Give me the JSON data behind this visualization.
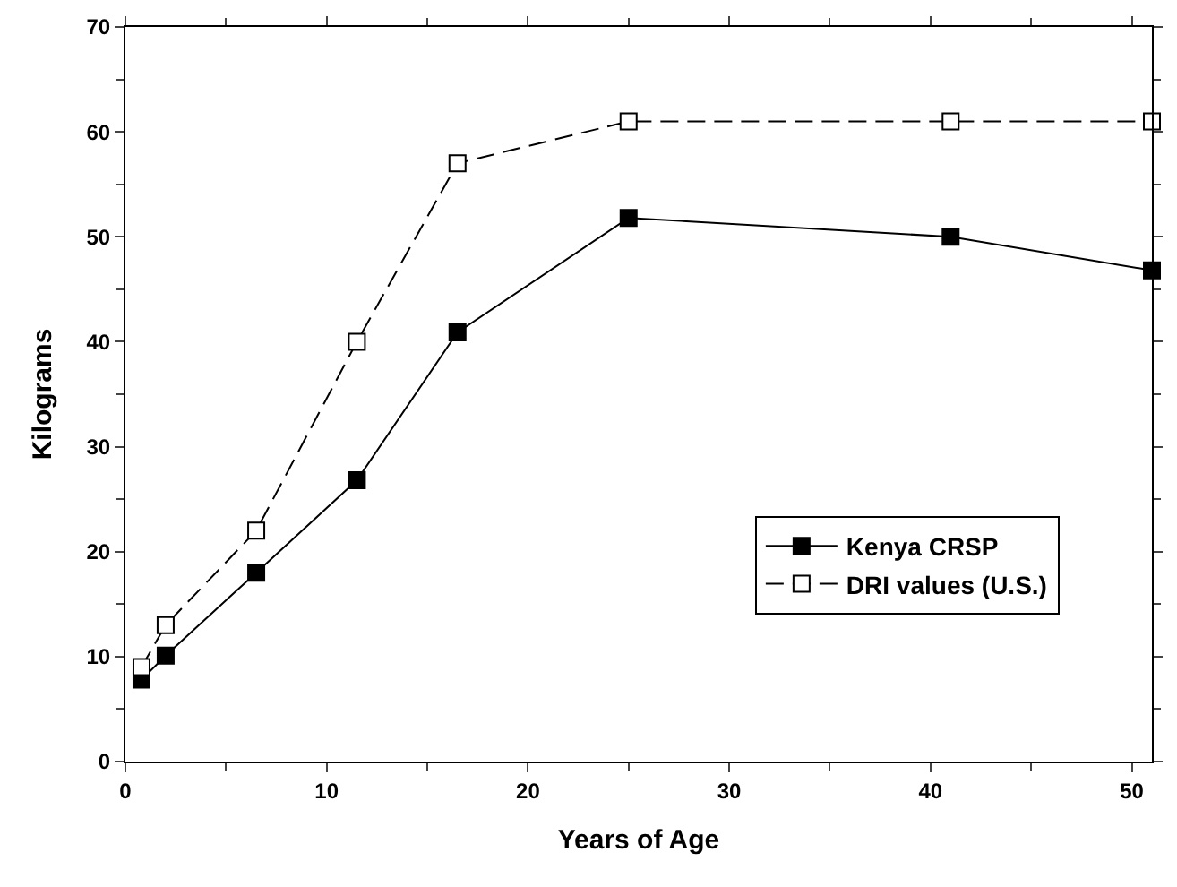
{
  "chart_data": {
    "type": "line",
    "xlabel": "Years of Age",
    "ylabel": "Kilograms",
    "xlim": [
      0,
      51
    ],
    "xticks": [
      0,
      10,
      20,
      30,
      40,
      50
    ],
    "ylim": [
      0,
      70
    ],
    "yticks": [
      0,
      10,
      20,
      30,
      40,
      50,
      60,
      70
    ],
    "legend": "bottom right",
    "marker": "square",
    "x": [
      0.8,
      2,
      6.5,
      11.5,
      16.5,
      25,
      41,
      51
    ],
    "series": [
      {
        "name": "Kenya CRSP",
        "color": "#000000",
        "line_style": "solid",
        "values": [
          7.8,
          10.1,
          18,
          26.8,
          40.9,
          51.8,
          50,
          46.8
        ]
      },
      {
        "name": "DRI values (U.S.)",
        "color": "#ffffff",
        "line_style": "dashed",
        "values": [
          9,
          13,
          22,
          40,
          57,
          61,
          61,
          61
        ]
      }
    ]
  }
}
